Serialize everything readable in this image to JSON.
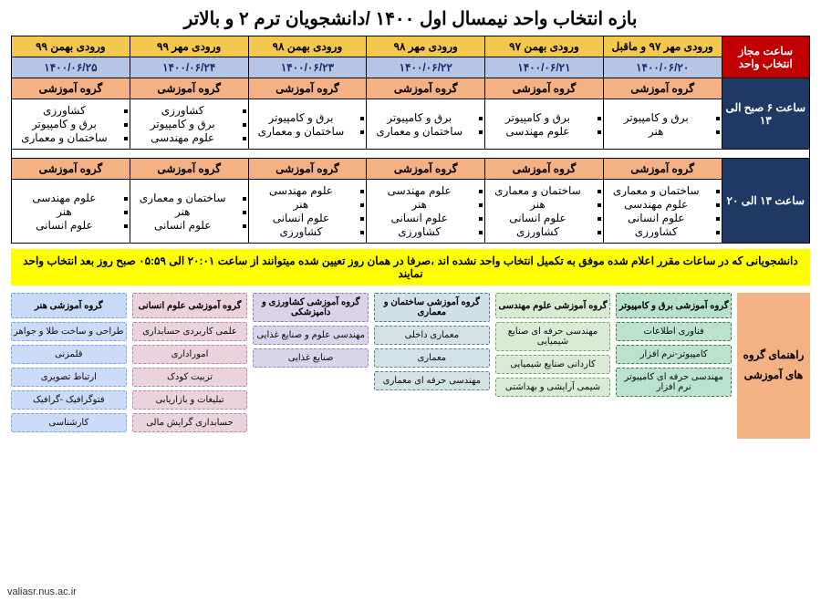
{
  "title": "بازه انتخاب واحد نیمسال اول ۱۴۰۰ /دانشجویان ترم ۲ و بالاتر",
  "header": {
    "side": "ساعت مجاز انتخاب واحد",
    "cols": [
      "ورودی مهر ۹۷ و ماقبل",
      "ورودی بهمن ۹۷",
      "ورودی مهر ۹۸",
      "ورودی بهمن ۹۸",
      "ورودی مهر ۹۹",
      "ورودی بهمن ۹۹"
    ]
  },
  "dates": [
    "۱۴۰۰/۰۶/۲۰",
    "۱۴۰۰/۰۶/۲۱",
    "۱۴۰۰/۰۶/۲۲",
    "۱۴۰۰/۰۶/۲۳",
    "۱۴۰۰/۰۶/۲۴",
    "۱۴۰۰/۰۶/۲۵"
  ],
  "group_label": "گروه آموزشی",
  "block1": {
    "side": "ساعت ۶ صبح الی ۱۳",
    "cells": [
      [
        "برق و کامپیوتر",
        "هنر"
      ],
      [
        "برق و کامپیوتر",
        "علوم مهندسی"
      ],
      [
        "برق و کامپیوتر",
        "ساختمان و معماری"
      ],
      [
        "برق و کامپیوتر",
        "ساختمان و معماری"
      ],
      [
        "کشاورزی",
        "برق و کامپیوتر",
        "علوم مهندسی"
      ],
      [
        "کشاورزی",
        "برق و کامپیوتر",
        "ساختمان و معماری"
      ]
    ]
  },
  "block2": {
    "side": "ساعت ۱۳ الی ۲۰",
    "cells": [
      [
        "ساختمان و معماری",
        "علوم مهندسی",
        "علوم انسانی",
        "کشاورزی"
      ],
      [
        "ساختمان و معماری",
        "هنر",
        "علوم انسانی",
        "کشاورزی"
      ],
      [
        "علوم مهندسی",
        "هنر",
        "علوم انسانی",
        "کشاورزی"
      ],
      [
        "علوم مهندسی",
        "هنر",
        "علوم انسانی",
        "کشاورزی"
      ],
      [
        "ساختمان و معماری",
        "هنر",
        "علوم انسانی"
      ],
      [
        "علوم مهندسی",
        "هنر",
        "علوم انسانی"
      ]
    ]
  },
  "notice": "دانشجویانی که در ساعات مقرر اعلام شده موفق به تکمیل انتخاب واحد نشده اند ،صرفا در همان روز تعیین شده میتوانند از ساعت ۲۰:۰۱ الی ۰۵:۵۹ صبح روز بعد انتخاب واحد نمایند",
  "guide": {
    "side": "راهنمای گروه های آموزشی",
    "columns": [
      {
        "head": "گروه آموزشی برق و کامپیوتر",
        "color": "#b7e1cd",
        "dash": "#2e7d32",
        "items": [
          "فناوری اطلاعات",
          "کامپیوتر-نرم افزار",
          "مهندسی حرفه ای کامپیوتر نرم افزار"
        ]
      },
      {
        "head": "گروه آموزشی علوم مهندسی",
        "color": "#d9ead3",
        "dash": "#6aa84f",
        "items": [
          "مهندسی حرفه ای صنایع شیمیایی",
          "کاردانی صنایع شیمیایی",
          "شیمی آرایشی و بهداشتی"
        ]
      },
      {
        "head": "گروه آموزشی ساختمان و معماری",
        "color": "#d0e0e3",
        "dash": "#45818e",
        "items": [
          "معماری داخلی",
          "معماری",
          "مهندسی حرفه ای معماری"
        ]
      },
      {
        "head": "گروه آموزشی کشاورزی و دامپزشکی",
        "color": "#d9d2e9",
        "dash": "#8e7cc3",
        "items": [
          "مهندسی علوم و صنایع غذایی",
          "صنایع غذایی"
        ]
      },
      {
        "head": "گروه آموزشی علوم انسانی",
        "color": "#ead1dc",
        "dash": "#c27ba0",
        "items": [
          "علمی کاربردی حسابداری",
          "اموراداری",
          "تربیت کودک",
          "تبلیغات و بازاریابی",
          "حسابداری گرایش مالی"
        ]
      },
      {
        "head": "گروه آموزشی هنر",
        "color": "#c9daf8",
        "dash": "#6d9eeb",
        "items": [
          "طراحی و ساخت طلا و جواهر",
          "قلمزنی",
          "ارتباط تصویری",
          "فتوگرافیک -گرافیک",
          "کارشناسی"
        ]
      }
    ]
  },
  "watermark": "valiasr.nus.ac.ir",
  "colors": {
    "red": "#c00000",
    "gold": "#f2c94c",
    "blue": "#b7c5e4",
    "salmon": "#f4b183",
    "navy": "#1f3864",
    "yellow": "#ffff00"
  }
}
